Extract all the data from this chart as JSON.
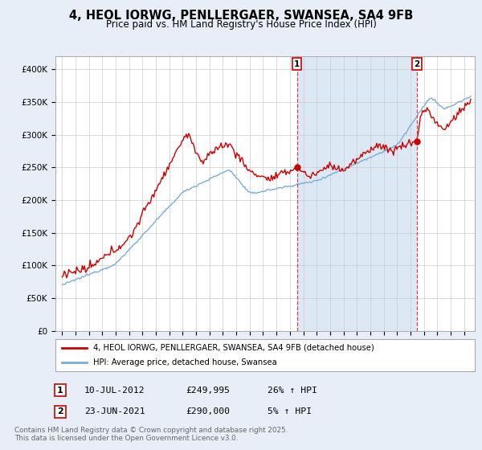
{
  "title": "4, HEOL IORWG, PENLLERGAER, SWANSEA, SA4 9FB",
  "subtitle": "Price paid vs. HM Land Registry's House Price Index (HPI)",
  "ylabel_ticks": [
    "£0",
    "£50K",
    "£100K",
    "£150K",
    "£200K",
    "£250K",
    "£300K",
    "£350K",
    "£400K"
  ],
  "ytick_values": [
    0,
    50000,
    100000,
    150000,
    200000,
    250000,
    300000,
    350000,
    400000
  ],
  "ylim": [
    0,
    420000
  ],
  "xlim_start": 1994.5,
  "xlim_end": 2025.8,
  "line1_color": "#cc0000",
  "line2_color": "#7aaed6",
  "shade_color": "#dce9f5",
  "marker1_label": "1",
  "marker1_date": "10-JUL-2012",
  "marker1_price": "£249,995",
  "marker1_hpi": "26% ↑ HPI",
  "marker1_x": 2012.52,
  "marker1_y": 249995,
  "marker2_label": "2",
  "marker2_date": "23-JUN-2021",
  "marker2_price": "£290,000",
  "marker2_hpi": "5% ↑ HPI",
  "marker2_x": 2021.47,
  "marker2_y": 290000,
  "legend_line1": "4, HEOL IORWG, PENLLERGAER, SWANSEA, SA4 9FB (detached house)",
  "legend_line2": "HPI: Average price, detached house, Swansea",
  "footer": "Contains HM Land Registry data © Crown copyright and database right 2025.\nThis data is licensed under the Open Government Licence v3.0.",
  "background_color": "#e8eef8",
  "plot_bg_color": "#ffffff",
  "grid_color": "#cccccc",
  "xticks": [
    1995,
    1996,
    1997,
    1998,
    1999,
    2000,
    2001,
    2002,
    2003,
    2004,
    2005,
    2006,
    2007,
    2008,
    2009,
    2010,
    2011,
    2012,
    2013,
    2014,
    2015,
    2016,
    2017,
    2018,
    2019,
    2020,
    2021,
    2022,
    2023,
    2024,
    2025
  ]
}
